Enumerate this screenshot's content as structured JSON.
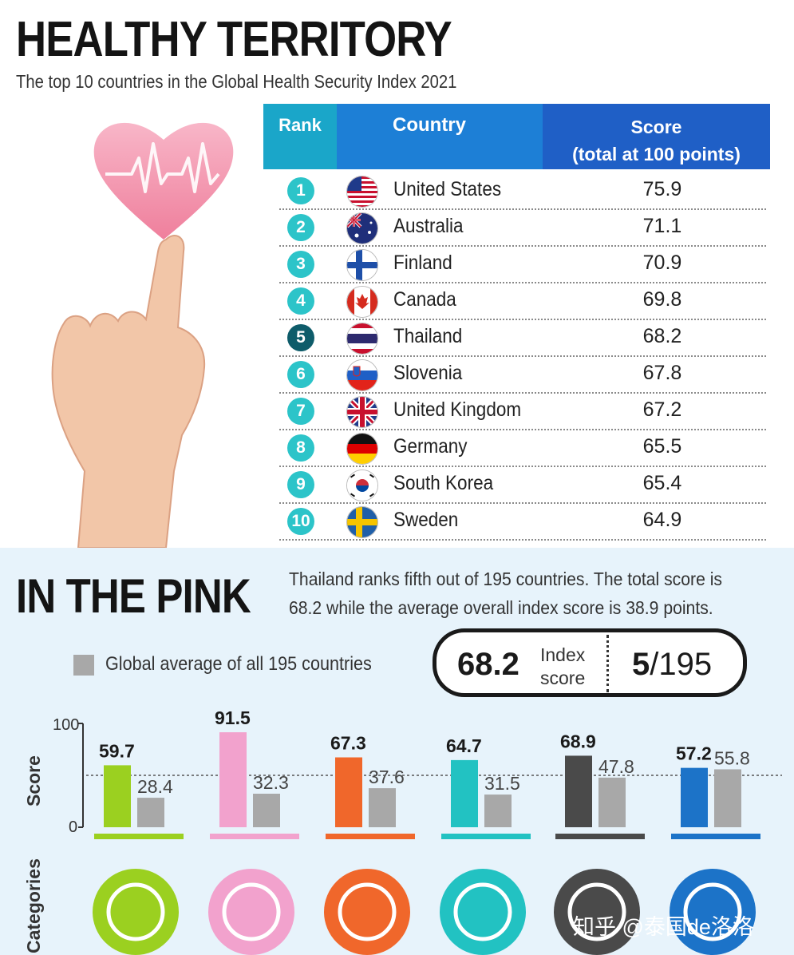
{
  "header": {
    "title": "HEALTHY TERRITORY",
    "subtitle": "The top 10 countries in the Global Health Security Index 2021"
  },
  "table": {
    "col_rank": "Rank",
    "col_country": "Country",
    "col_score_line1": "Score",
    "col_score_line2": "(total at 100 points)",
    "rows": [
      {
        "rank": "1",
        "country": "United States",
        "score": "75.9",
        "flag": "us-flag-icon"
      },
      {
        "rank": "2",
        "country": "Australia",
        "score": "71.1",
        "flag": "au-flag-icon"
      },
      {
        "rank": "3",
        "country": "Finland",
        "score": "70.9",
        "flag": "fi-flag-icon"
      },
      {
        "rank": "4",
        "country": "Canada",
        "score": "69.8",
        "flag": "ca-flag-icon"
      },
      {
        "rank": "5",
        "country": "Thailand",
        "score": "68.2",
        "flag": "th-flag-icon"
      },
      {
        "rank": "6",
        "country": "Slovenia",
        "score": "67.8",
        "flag": "si-flag-icon"
      },
      {
        "rank": "7",
        "country": "United Kingdom",
        "score": "67.2",
        "flag": "gb-flag-icon"
      },
      {
        "rank": "8",
        "country": "Germany",
        "score": "65.5",
        "flag": "de-flag-icon"
      },
      {
        "rank": "9",
        "country": "South Korea",
        "score": "65.4",
        "flag": "kr-flag-icon"
      },
      {
        "rank": "10",
        "country": "Sweden",
        "score": "64.9",
        "flag": "se-flag-icon"
      }
    ]
  },
  "pink": {
    "title": "IN THE PINK",
    "description": "Thailand ranks fifth out of 195 countries. The total score is 68.2 while the average overall index score is 38.9 points.",
    "legend": "Global average of all 195 countries",
    "index_score": "68.2",
    "index_label_1": "Index",
    "index_label_2": "score",
    "rank_bold": "5",
    "rank_rest": "/195"
  },
  "chart_data": {
    "type": "bar",
    "ylabel": "Score",
    "xlabel": "Categories",
    "ylim": [
      0,
      100
    ],
    "yticks": [
      "100",
      "0"
    ],
    "reference_line": 50,
    "series": [
      {
        "values": [
          59.7,
          91.5,
          67.3,
          64.7,
          68.9,
          57.2
        ],
        "colors": [
          "#9bd020",
          "#f2a2cd",
          "#f0672b",
          "#22c2c2",
          "#4a4a4a",
          "#1c73c8"
        ]
      },
      {
        "name": "Global average of all 195 countries",
        "values": [
          28.4,
          32.3,
          37.6,
          31.5,
          47.8,
          55.8
        ],
        "colors": [
          "#a8a8a8",
          "#a8a8a8",
          "#a8a8a8",
          "#a8a8a8",
          "#a8a8a8",
          "#a8a8a8"
        ]
      }
    ],
    "labels_thai": [
      "59.7",
      "91.5",
      "67.3",
      "64.7",
      "68.9",
      "57.2"
    ],
    "labels_avg": [
      "28.4",
      "32.3",
      "37.6",
      "31.5",
      "47.8",
      "55.8"
    ],
    "category_icons": [
      "shield-virus-icon",
      "search-virus-icon",
      "running-person-icon",
      "medical-kit-icon",
      "globe-network-icon",
      "warning-triangle-icon"
    ]
  },
  "watermark": "知乎 @泰国de洛洛"
}
